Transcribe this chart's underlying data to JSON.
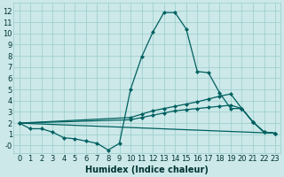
{
  "xlabel": "Humidex (Indice chaleur)",
  "xlim": [
    -0.5,
    23.5
  ],
  "ylim": [
    -0.7,
    12.7
  ],
  "yticks": [
    0,
    1,
    2,
    3,
    4,
    5,
    6,
    7,
    8,
    9,
    10,
    11,
    12
  ],
  "ytick_labels": [
    "-0",
    "1",
    "2",
    "3",
    "4",
    "5",
    "6",
    "7",
    "8",
    "9",
    "10",
    "11",
    "12"
  ],
  "xticks": [
    0,
    1,
    2,
    3,
    4,
    5,
    6,
    7,
    8,
    9,
    10,
    11,
    12,
    13,
    14,
    15,
    16,
    17,
    18,
    19,
    20,
    21,
    22,
    23
  ],
  "background_color": "#cce8e8",
  "grid_color": "#99cccc",
  "line_color": "#006060",
  "line1_x": [
    0,
    1,
    2,
    3,
    4,
    5,
    6,
    7,
    8,
    9,
    10,
    11,
    12,
    13,
    14,
    15,
    16,
    17,
    18,
    19,
    20,
    21,
    22,
    23
  ],
  "line1_y": [
    2.0,
    1.5,
    1.5,
    1.2,
    0.7,
    0.6,
    0.4,
    0.2,
    -0.4,
    0.2,
    5.0,
    7.9,
    10.1,
    11.85,
    11.85,
    10.4,
    6.6,
    6.5,
    4.7,
    3.3,
    3.3,
    2.1,
    1.2,
    1.1
  ],
  "line2_x": [
    0,
    23
  ],
  "line2_y": [
    2.0,
    1.1
  ],
  "line3_x": [
    0,
    10,
    11,
    12,
    13,
    14,
    15,
    16,
    17,
    18,
    19,
    20,
    21,
    22,
    23
  ],
  "line3_y": [
    2.0,
    2.5,
    2.8,
    3.1,
    3.3,
    3.5,
    3.7,
    3.9,
    4.15,
    4.4,
    4.6,
    3.3,
    2.1,
    1.2,
    1.1
  ],
  "line4_x": [
    0,
    10,
    11,
    12,
    13,
    14,
    15,
    16,
    17,
    18,
    19,
    20,
    21,
    22,
    23
  ],
  "line4_y": [
    2.0,
    2.3,
    2.5,
    2.7,
    2.9,
    3.1,
    3.2,
    3.3,
    3.4,
    3.5,
    3.6,
    3.3,
    2.1,
    1.2,
    1.1
  ],
  "marker_size": 2.5,
  "line_width": 0.9,
  "font_size_label": 7,
  "font_size_tick": 6
}
